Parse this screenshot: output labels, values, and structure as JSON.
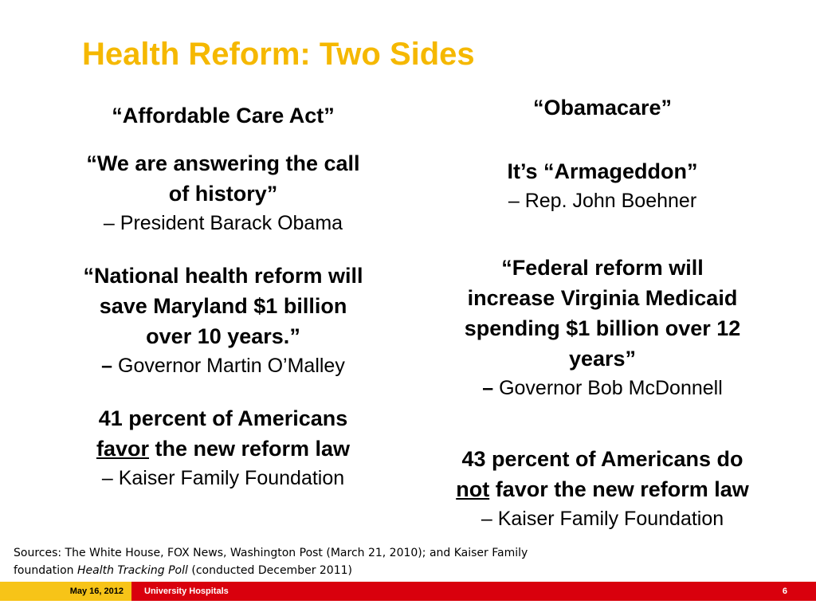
{
  "title": "Health Reform: Two Sides",
  "left": {
    "heading": "“Affordable Care Act”",
    "q1_line1": "“We are answering the call",
    "q1_line2": "of history”",
    "q1_attr": "– President Barack Obama",
    "q2_line1": "“National health reform will",
    "q2_line2": "save Maryland $1 billion",
    "q2_line3": "over 10 years.”",
    "q2_dash": "–",
    "q2_attr": " Governor Martin O’Malley",
    "poll_line1": "41 percent of Americans",
    "poll_emph": "favor",
    "poll_rest": " the new reform law",
    "poll_attr": "– Kaiser Family Foundation"
  },
  "right": {
    "heading": "“Obamacare”",
    "q1_line1": "It’s “Armageddon”",
    "q1_attr": "– Rep. John Boehner",
    "q2_line1": "“Federal reform will",
    "q2_line2": "increase Virginia Medicaid",
    "q2_line3": "spending $1 billion over 12",
    "q2_line4": "years”",
    "q2_dash": "–",
    "q2_attr": " Governor Bob McDonnell",
    "poll_line1": "43 percent of Americans do",
    "poll_emph": "not",
    "poll_rest": " favor the new reform law",
    "poll_attr": "– Kaiser Family Foundation"
  },
  "sources": {
    "line1": "Sources: The White House, FOX News, Washington Post (March 21, 2010); and Kaiser Family",
    "line2_pre": "foundation ",
    "line2_italic": "Health Tracking Poll",
    "line2_post": " (conducted December 2011)"
  },
  "footer": {
    "date": "May 16, 2012",
    "org": "University Hospitals",
    "page": "6"
  },
  "colors": {
    "title": "#f5b800",
    "footer_yellow": "#f7c418",
    "footer_red": "#d9000d"
  }
}
